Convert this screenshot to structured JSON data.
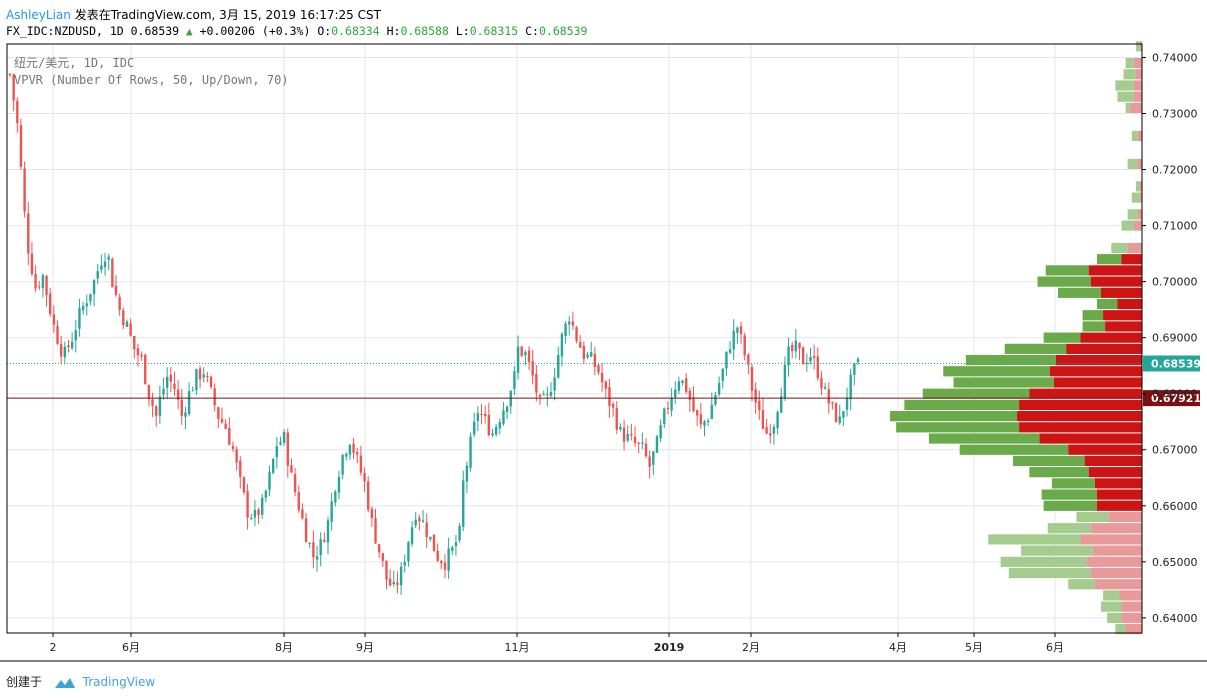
{
  "header": {
    "author": "AshleyLian",
    "published_text": "发表在TradingView.com, 3月 15, 2019 16:17:25 CST",
    "symbol_line": "FX_IDC:NZDUSD, 1D 0.68539",
    "change": "+0.00206 (+0.3%)",
    "ohlc": {
      "o_label": "O:",
      "o": "0.68334",
      "h_label": "H:",
      "h": "0.68588",
      "l_label": "L:",
      "l": "0.68315",
      "c_label": "C:",
      "c": "0.68539"
    }
  },
  "legend": {
    "symbol": "纽元/美元, 1D, IDC",
    "indicator": "VPVR (Number Of Rows, 50, Up/Down, 70)"
  },
  "footer": {
    "created_with": "创建于",
    "brand": "TradingView"
  },
  "colors": {
    "up_candle": "#26a69a",
    "down_candle": "#ef5350",
    "vp_up": "#6aaa4b",
    "vp_down": "#cc1414",
    "vp_up_light": "#a3cc8e",
    "vp_down_light": "#e89a9a",
    "last_price_bg": "#26a69a",
    "poc_line": "#7b1013"
  },
  "chart_data": {
    "type": "candlestick",
    "y_range": [
      0.6373,
      0.7424
    ],
    "y_ticks": [
      "0.74000",
      "0.73000",
      "0.72000",
      "0.71000",
      "0.70000",
      "0.69000",
      "0.68000",
      "0.67000",
      "0.66000",
      "0.65000",
      "0.64000"
    ],
    "x_ticks": [
      "2",
      "6月",
      "8月",
      "9月",
      "11月",
      "2019",
      "2月",
      "4月",
      "5月",
      "6月"
    ],
    "last_price": {
      "value": 0.68539,
      "label": "0.68539"
    },
    "poc_price": {
      "value": 0.67921,
      "label": "0.67921"
    },
    "price_path": [
      [
        0,
        0.737
      ],
      [
        2,
        0.728
      ],
      [
        4,
        0.712
      ],
      [
        5,
        0.706
      ],
      [
        7,
        0.699
      ],
      [
        8,
        0.7
      ],
      [
        9,
        0.701
      ],
      [
        11,
        0.695
      ],
      [
        12,
        0.692
      ],
      [
        13,
        0.69
      ],
      [
        14,
        0.688
      ],
      [
        15,
        0.687
      ],
      [
        17,
        0.69
      ],
      [
        19,
        0.694
      ],
      [
        21,
        0.697
      ],
      [
        23,
        0.7
      ],
      [
        25,
        0.704
      ],
      [
        26,
        0.705
      ],
      [
        27,
        0.704
      ],
      [
        28,
        0.7
      ],
      [
        30,
        0.695
      ],
      [
        32,
        0.692
      ],
      [
        34,
        0.688
      ],
      [
        36,
        0.686
      ],
      [
        38,
        0.68
      ],
      [
        40,
        0.676
      ],
      [
        41,
        0.679
      ],
      [
        43,
        0.683
      ],
      [
        45,
        0.681
      ],
      [
        47,
        0.676
      ],
      [
        49,
        0.68
      ],
      [
        51,
        0.683
      ],
      [
        53,
        0.684
      ],
      [
        55,
        0.68
      ],
      [
        57,
        0.676
      ],
      [
        59,
        0.674
      ],
      [
        61,
        0.67
      ],
      [
        63,
        0.664
      ],
      [
        65,
        0.659
      ],
      [
        67,
        0.658
      ],
      [
        69,
        0.66
      ],
      [
        71,
        0.665
      ],
      [
        73,
        0.671
      ],
      [
        75,
        0.672
      ],
      [
        77,
        0.665
      ],
      [
        79,
        0.66
      ],
      [
        81,
        0.655
      ],
      [
        83,
        0.651
      ],
      [
        85,
        0.653
      ],
      [
        87,
        0.657
      ],
      [
        89,
        0.664
      ],
      [
        91,
        0.669
      ],
      [
        93,
        0.672
      ],
      [
        95,
        0.668
      ],
      [
        97,
        0.664
      ],
      [
        99,
        0.657
      ],
      [
        101,
        0.652
      ],
      [
        103,
        0.647
      ],
      [
        105,
        0.645
      ],
      [
        107,
        0.648
      ],
      [
        109,
        0.654
      ],
      [
        111,
        0.659
      ],
      [
        113,
        0.657
      ],
      [
        115,
        0.654
      ],
      [
        117,
        0.651
      ],
      [
        119,
        0.65
      ],
      [
        121,
        0.652
      ],
      [
        123,
        0.655
      ],
      [
        124,
        0.664
      ],
      [
        126,
        0.671
      ],
      [
        128,
        0.677
      ],
      [
        130,
        0.675
      ],
      [
        132,
        0.673
      ],
      [
        134,
        0.676
      ],
      [
        136,
        0.679
      ],
      [
        138,
        0.683
      ],
      [
        139,
        0.688
      ],
      [
        141,
        0.687
      ],
      [
        143,
        0.683
      ],
      [
        145,
        0.678
      ],
      [
        147,
        0.679
      ],
      [
        149,
        0.684
      ],
      [
        151,
        0.69
      ],
      [
        153,
        0.694
      ],
      [
        155,
        0.69
      ],
      [
        157,
        0.687
      ],
      [
        159,
        0.686
      ],
      [
        161,
        0.684
      ],
      [
        163,
        0.68
      ],
      [
        165,
        0.677
      ],
      [
        167,
        0.673
      ],
      [
        169,
        0.672
      ],
      [
        171,
        0.671
      ],
      [
        173,
        0.67
      ],
      [
        175,
        0.667
      ],
      [
        177,
        0.671
      ],
      [
        179,
        0.676
      ],
      [
        181,
        0.68
      ],
      [
        183,
        0.683
      ],
      [
        185,
        0.681
      ],
      [
        187,
        0.677
      ],
      [
        189,
        0.674
      ],
      [
        191,
        0.676
      ],
      [
        193,
        0.68
      ],
      [
        195,
        0.684
      ],
      [
        197,
        0.689
      ],
      [
        199,
        0.692
      ],
      [
        201,
        0.687
      ],
      [
        203,
        0.681
      ],
      [
        205,
        0.676
      ],
      [
        207,
        0.673
      ],
      [
        209,
        0.675
      ],
      [
        211,
        0.681
      ],
      [
        213,
        0.687
      ],
      [
        215,
        0.688
      ],
      [
        217,
        0.686
      ],
      [
        219,
        0.687
      ],
      [
        221,
        0.684
      ],
      [
        223,
        0.68
      ],
      [
        225,
        0.677
      ],
      [
        227,
        0.675
      ],
      [
        229,
        0.68
      ],
      [
        231,
        0.684
      ],
      [
        232,
        0.685
      ]
    ],
    "volume_profile": {
      "row_size": 0.002,
      "rows": [
        {
          "price": 0.742,
          "up": 0.2,
          "down": 0.1
        },
        {
          "price": 0.739,
          "up": 0.4,
          "down": 0.4
        },
        {
          "price": 0.737,
          "up": 0.6,
          "down": 0.3
        },
        {
          "price": 0.735,
          "up": 0.9,
          "down": 0.4
        },
        {
          "price": 0.733,
          "up": 0.8,
          "down": 0.4
        },
        {
          "price": 0.731,
          "up": 0.2,
          "down": 0.6
        },
        {
          "price": 0.726,
          "up": 0.3,
          "down": 0.2
        },
        {
          "price": 0.721,
          "up": 0.5,
          "down": 0.2
        },
        {
          "price": 0.717,
          "up": 0.2,
          "down": 0.1
        },
        {
          "price": 0.715,
          "up": 0.4,
          "down": 0.1
        },
        {
          "price": 0.712,
          "up": 0.5,
          "down": 0.2
        },
        {
          "price": 0.71,
          "up": 0.6,
          "down": 0.4
        },
        {
          "price": 0.706,
          "up": 0.8,
          "down": 0.7
        },
        {
          "price": 0.704,
          "up": 1.2,
          "down": 1.0
        },
        {
          "price": 0.702,
          "up": 2.1,
          "down": 2.6
        },
        {
          "price": 0.7,
          "up": 2.6,
          "down": 2.5
        },
        {
          "price": 0.698,
          "up": 2.1,
          "down": 2.0
        },
        {
          "price": 0.696,
          "up": 1.0,
          "down": 1.2
        },
        {
          "price": 0.694,
          "up": 1.0,
          "down": 1.9
        },
        {
          "price": 0.692,
          "up": 1.1,
          "down": 1.8
        },
        {
          "price": 0.69,
          "up": 1.8,
          "down": 3.0
        },
        {
          "price": 0.688,
          "up": 3.0,
          "down": 3.7
        },
        {
          "price": 0.686,
          "up": 4.4,
          "down": 4.2
        },
        {
          "price": 0.684,
          "up": 5.2,
          "down": 4.5
        },
        {
          "price": 0.682,
          "up": 4.9,
          "down": 4.3
        },
        {
          "price": 0.68,
          "up": 5.2,
          "down": 5.5
        },
        {
          "price": 0.678,
          "up": 5.6,
          "down": 6.0
        },
        {
          "price": 0.676,
          "up": 6.2,
          "down": 6.1
        },
        {
          "price": 0.674,
          "up": 6.0,
          "down": 6.0
        },
        {
          "price": 0.672,
          "up": 5.4,
          "down": 5.0
        },
        {
          "price": 0.67,
          "up": 5.3,
          "down": 3.6
        },
        {
          "price": 0.668,
          "up": 3.5,
          "down": 2.8
        },
        {
          "price": 0.666,
          "up": 2.9,
          "down": 2.6
        },
        {
          "price": 0.664,
          "up": 2.1,
          "down": 2.3
        },
        {
          "price": 0.662,
          "up": 2.7,
          "down": 2.2
        },
        {
          "price": 0.66,
          "up": 2.6,
          "down": 2.2
        },
        {
          "price": 0.658,
          "up": 1.6,
          "down": 1.6
        },
        {
          "price": 0.656,
          "up": 2.1,
          "down": 2.5
        },
        {
          "price": 0.654,
          "up": 4.5,
          "down": 3.0
        },
        {
          "price": 0.652,
          "up": 3.5,
          "down": 2.4
        },
        {
          "price": 0.65,
          "up": 4.2,
          "down": 2.7
        },
        {
          "price": 0.648,
          "up": 4.0,
          "down": 2.5
        },
        {
          "price": 0.646,
          "up": 1.3,
          "down": 2.3
        },
        {
          "price": 0.644,
          "up": 0.8,
          "down": 1.1
        },
        {
          "price": 0.642,
          "up": 1.0,
          "down": 1.0
        },
        {
          "price": 0.64,
          "up": 0.7,
          "down": 1.0
        },
        {
          "price": 0.638,
          "up": 0.5,
          "down": 0.8
        }
      ]
    }
  }
}
